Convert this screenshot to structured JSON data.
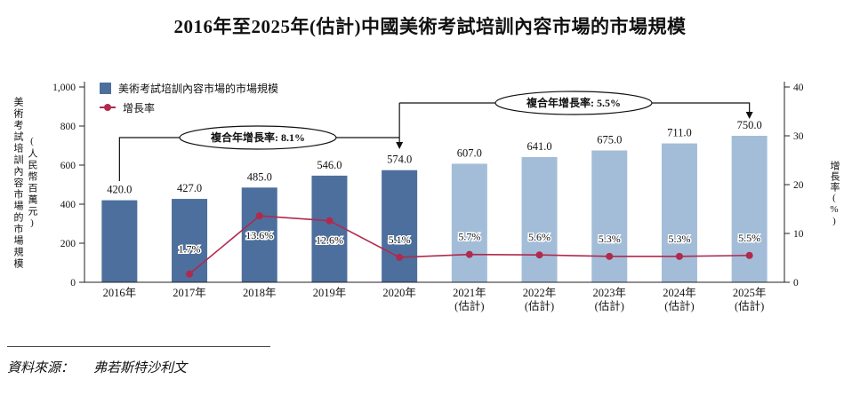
{
  "title": "2016年至2025年(估計)中國美術考試培訓內容市場的市場規模",
  "legend": {
    "bars": "美術考試培訓內容市場的市場規模",
    "line": "增長率"
  },
  "axes": {
    "left_label_main": "美術考試培訓內容市場的市場規模",
    "left_label_unit": "(人民幣百萬元)",
    "left_ticks": [
      "1,000",
      "800",
      "600",
      "400",
      "200",
      "0"
    ],
    "right_label": "增長率(%)",
    "right_ticks": [
      "40",
      "30",
      "20",
      "10",
      "0"
    ]
  },
  "source": {
    "label": "資料來源：",
    "value": "弗若斯特沙利文"
  },
  "colors": {
    "bar_actual": "#4d6f9d",
    "bar_estimate": "#a3bdd8",
    "line": "#b02a4e",
    "ink": "#111111"
  },
  "chart_data": {
    "type": "bar+line",
    "title": "2016年至2025年(估計)中國美術考試培訓內容市場的市場規模",
    "ylabel": "美術考試培訓內容市場的市場規模 (人民幣百萬元)",
    "y2label": "增長率(%)",
    "categories": [
      {
        "label": "2016年",
        "note": ""
      },
      {
        "label": "2017年",
        "note": ""
      },
      {
        "label": "2018年",
        "note": ""
      },
      {
        "label": "2019年",
        "note": ""
      },
      {
        "label": "2020年",
        "note": ""
      },
      {
        "label": "2021年",
        "note": "(估計)"
      },
      {
        "label": "2022年",
        "note": "(估計)"
      },
      {
        "label": "2023年",
        "note": "(估計)"
      },
      {
        "label": "2024年",
        "note": "(估計)"
      },
      {
        "label": "2025年",
        "note": "(估計)"
      }
    ],
    "bar_series": {
      "name": "美術考試培訓內容市場的市場規模",
      "unit": "人民幣百萬元",
      "values": [
        420.0,
        427.0,
        485.0,
        546.0,
        574.0,
        607.0,
        641.0,
        675.0,
        711.0,
        750.0
      ],
      "labels": [
        "420.0",
        "427.0",
        "485.0",
        "546.0",
        "574.0",
        "607.0",
        "641.0",
        "675.0",
        "711.0",
        "750.0"
      ],
      "estimate_from_index": 5,
      "ylim": [
        0,
        1000
      ]
    },
    "line_series": {
      "name": "增長率",
      "unit": "%",
      "values": [
        null,
        1.7,
        13.6,
        12.6,
        5.1,
        5.7,
        5.6,
        5.3,
        5.3,
        5.5
      ],
      "labels": [
        "",
        "1.7%",
        "13.6%",
        "12.6%",
        "5.1%",
        "5.7%",
        "5.6%",
        "5.3%",
        "5.3%",
        "5.5%"
      ],
      "ylim": [
        0,
        40
      ]
    },
    "annotations": [
      {
        "text": "複合年增長率: 8.1%",
        "from": "2016年",
        "to": "2020年"
      },
      {
        "text": "複合年增長率: 5.5%",
        "from": "2020年",
        "to": "2025年"
      }
    ],
    "legend_position": "top-left",
    "grid": false
  }
}
